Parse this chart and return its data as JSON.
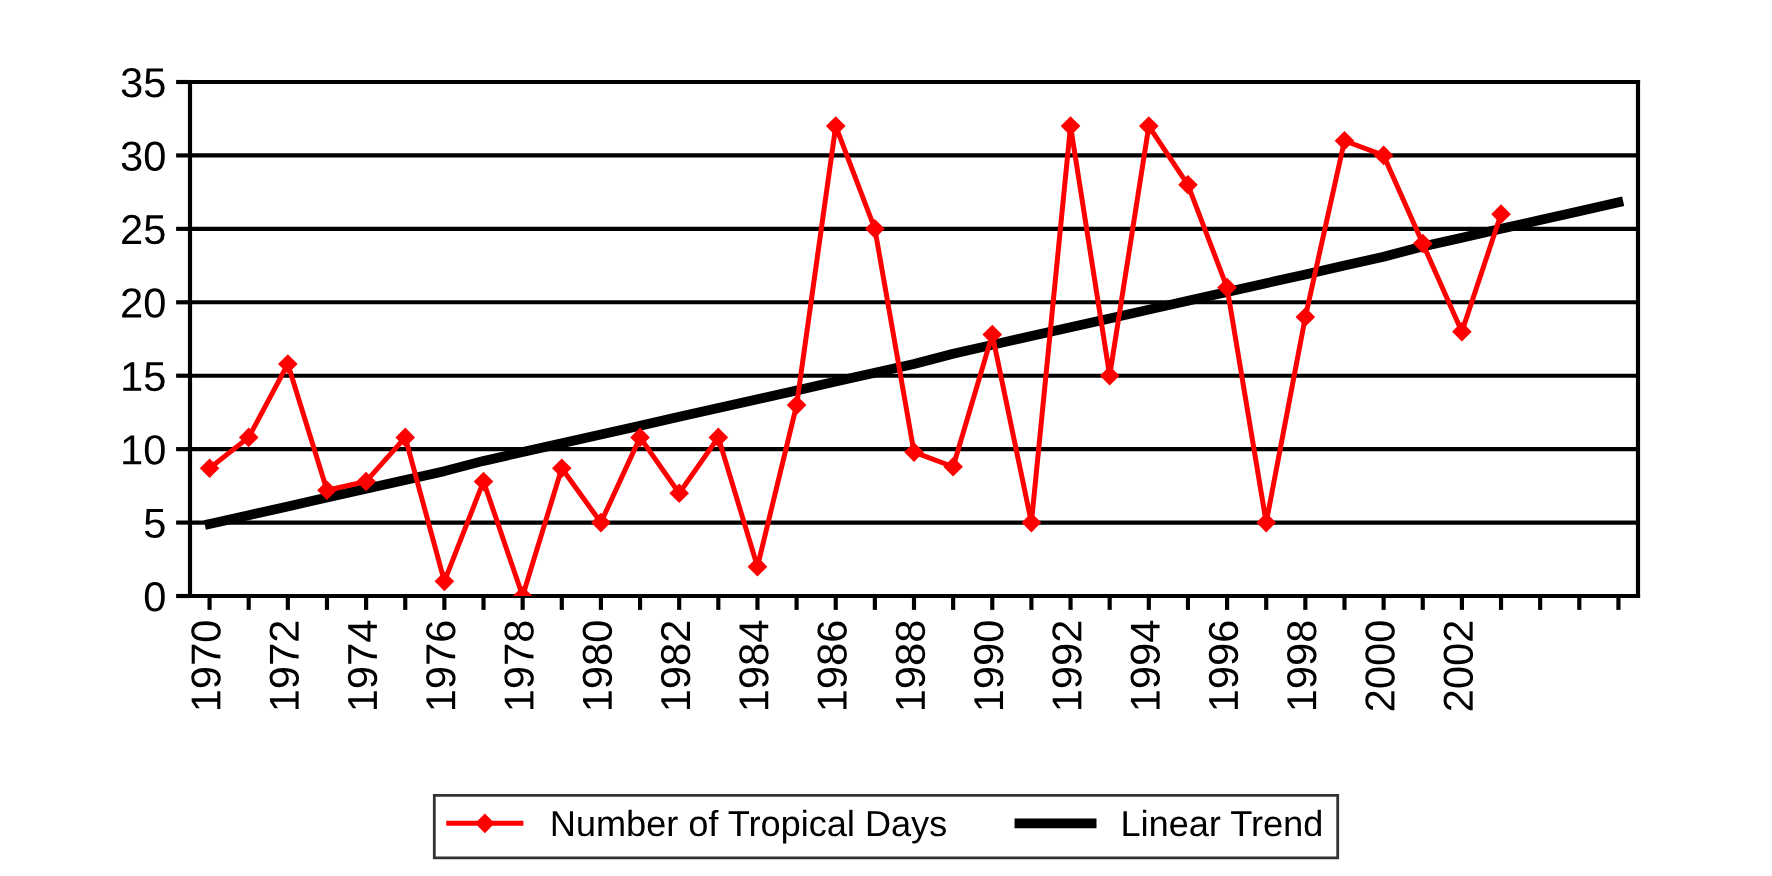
{
  "chart_data": {
    "type": "line",
    "categories": [
      "1970",
      null,
      "1972",
      null,
      "1974",
      null,
      "1976",
      null,
      "1978",
      null,
      "1980",
      null,
      "1982",
      null,
      "1984",
      null,
      "1986",
      null,
      "1988",
      null,
      "1990",
      null,
      "1992",
      null,
      "1994",
      null,
      "1996",
      null,
      "1998",
      null,
      "2000",
      null,
      "2002",
      null,
      null,
      null,
      null
    ],
    "series": [
      {
        "name": "Number of Tropical Days",
        "color": "#ff0000",
        "marker": "diamond",
        "values": [
          8.7,
          10.8,
          15.8,
          7.2,
          7.8,
          10.8,
          1,
          7.8,
          0,
          8.7,
          5,
          10.8,
          7,
          10.8,
          2,
          13,
          32,
          25,
          9.8,
          8.8,
          17.8,
          5,
          32,
          15,
          32,
          28,
          21,
          5,
          19,
          31,
          30,
          24,
          18,
          26,
          null,
          null,
          null
        ]
      },
      {
        "name": "Linear Trend",
        "color": "#000000",
        "marker": "none",
        "values": [
          4.9,
          5.5,
          6.1,
          6.7,
          7.3,
          7.9,
          8.5,
          9.2,
          9.8,
          10.4,
          11.0,
          11.6,
          12.2,
          12.8,
          13.4,
          14.0,
          14.6,
          15.2,
          15.8,
          16.5,
          17.1,
          17.7,
          18.3,
          18.9,
          19.5,
          20.1,
          20.7,
          21.3,
          21.9,
          22.5,
          23.1,
          23.8,
          24.4,
          25.0,
          25.6,
          26.2,
          26.8
        ]
      }
    ],
    "ylim": [
      0,
      35
    ],
    "yticks": [
      0,
      5,
      10,
      15,
      20,
      25,
      30,
      35
    ],
    "grid": "y",
    "legend": "bottom",
    "line_style": "solid"
  }
}
